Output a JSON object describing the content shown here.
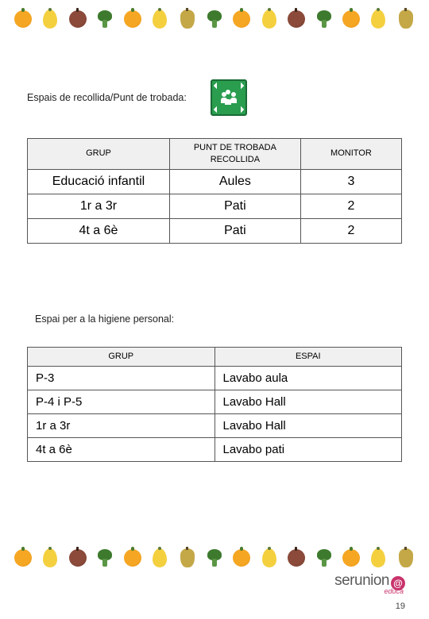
{
  "section1": {
    "title": "Espais de recollida/Punt de trobada:",
    "icon_name": "assembly-point-icon",
    "icon_bg": "#2a9d4f"
  },
  "table1": {
    "header": {
      "col1": "GRUP",
      "col2_line1": "PUNT DE TROBADA",
      "col2_line2": "RECOLLIDA",
      "col3": "MONITOR"
    },
    "rows": [
      {
        "grup": "Educació infantil",
        "punt": "Aules",
        "monitor": "3"
      },
      {
        "grup": "1r a 3r",
        "punt": "Pati",
        "monitor": "2"
      },
      {
        "grup": "4t a 6è",
        "punt": "Pati",
        "monitor": "2"
      }
    ]
  },
  "section2": {
    "title": "Espai per a la higiene personal:"
  },
  "table2": {
    "header": {
      "col1": "GRUP",
      "col2": "ESPAI"
    },
    "rows": [
      {
        "grup": "P-3",
        "espai": "Lavabo aula"
      },
      {
        "grup": "P-4 i P-5",
        "espai": "Lavabo Hall"
      },
      {
        "grup": "1r a 3r",
        "espai": "Lavabo Hall"
      },
      {
        "grup": "4t a 6è",
        "espai": "Lavabo pati"
      }
    ]
  },
  "footer": {
    "logo_text": "serunion",
    "logo_symbol": "@",
    "logo_sub": "educa",
    "page_number": "19"
  },
  "fruit_sequence": [
    "orange",
    "lemon",
    "apple",
    "broccoli",
    "orange",
    "lemon",
    "pear",
    "broccoli",
    "orange",
    "lemon",
    "apple",
    "broccoli",
    "orange",
    "lemon",
    "pear"
  ],
  "colors": {
    "header_bg": "#f0f0f0",
    "border": "#555555",
    "text": "#222222",
    "logo_accent": "#c8336b"
  }
}
